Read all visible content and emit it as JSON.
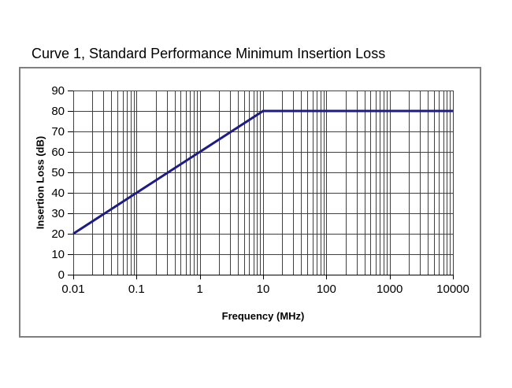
{
  "page": {
    "background": "#ffffff"
  },
  "chart_data": {
    "type": "line",
    "title": "Curve 1, Standard Performance Minimum Insertion Loss",
    "xlabel": "Frequency (MHz)",
    "ylabel": "Insertion Loss (dB)",
    "x_scale": "log",
    "xlim": [
      0.01,
      10000
    ],
    "ylim": [
      0,
      90
    ],
    "x_ticks": [
      {
        "value": 0.01,
        "label": "0.01"
      },
      {
        "value": 0.1,
        "label": "0.1"
      },
      {
        "value": 1,
        "label": "1"
      },
      {
        "value": 10,
        "label": "10"
      },
      {
        "value": 100,
        "label": "100"
      },
      {
        "value": 1000,
        "label": "1000"
      },
      {
        "value": 10000,
        "label": "10000"
      }
    ],
    "y_ticks": [
      {
        "value": 0,
        "label": "0"
      },
      {
        "value": 10,
        "label": "10"
      },
      {
        "value": 20,
        "label": "20"
      },
      {
        "value": 30,
        "label": "30"
      },
      {
        "value": 40,
        "label": "40"
      },
      {
        "value": 50,
        "label": "50"
      },
      {
        "value": 60,
        "label": "60"
      },
      {
        "value": 70,
        "label": "70"
      },
      {
        "value": 80,
        "label": "80"
      },
      {
        "value": 90,
        "label": "90"
      }
    ],
    "grid": {
      "x_minor_log": true,
      "y_major": true,
      "legend": "none"
    },
    "series": [
      {
        "name": "Curve 1",
        "color": "#1b1b8a",
        "points": [
          [
            0.01,
            20
          ],
          [
            10,
            80
          ],
          [
            10000,
            80
          ]
        ]
      }
    ],
    "colors": {
      "frame": "#7f7f7f",
      "grid": "#404040",
      "axis": "#000000",
      "text": "#000000",
      "plot_background": "#ffffff"
    }
  }
}
